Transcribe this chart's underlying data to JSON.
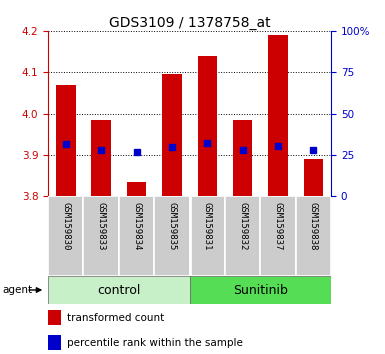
{
  "title": "GDS3109 / 1378758_at",
  "samples": [
    "GSM159830",
    "GSM159833",
    "GSM159834",
    "GSM159835",
    "GSM159831",
    "GSM159832",
    "GSM159837",
    "GSM159838"
  ],
  "groups": [
    "control",
    "control",
    "control",
    "control",
    "Sunitinib",
    "Sunitinib",
    "Sunitinib",
    "Sunitinib"
  ],
  "bar_tops": [
    4.07,
    3.985,
    3.835,
    4.095,
    4.14,
    3.985,
    4.19,
    3.89
  ],
  "bar_bottom": 3.8,
  "blue_dots": [
    3.925,
    3.912,
    3.907,
    3.918,
    3.928,
    3.912,
    3.922,
    3.912
  ],
  "ylim": [
    3.8,
    4.2
  ],
  "ylim_right": [
    0,
    100
  ],
  "yticks_left": [
    3.8,
    3.9,
    4.0,
    4.1,
    4.2
  ],
  "yticks_right": [
    0,
    25,
    50,
    75,
    100
  ],
  "bar_color": "#cc0000",
  "dot_color": "#0000cc",
  "grid_color": "#000000",
  "control_color": "#c8f0c8",
  "sunitinib_color": "#55dd55",
  "label_bg_color": "#cccccc",
  "agent_label": "agent",
  "legend_bar_label": "transformed count",
  "legend_dot_label": "percentile rank within the sample",
  "title_fontsize": 10,
  "tick_fontsize": 7.5,
  "sample_fontsize": 6.5,
  "group_fontsize": 9,
  "legend_fontsize": 7.5
}
